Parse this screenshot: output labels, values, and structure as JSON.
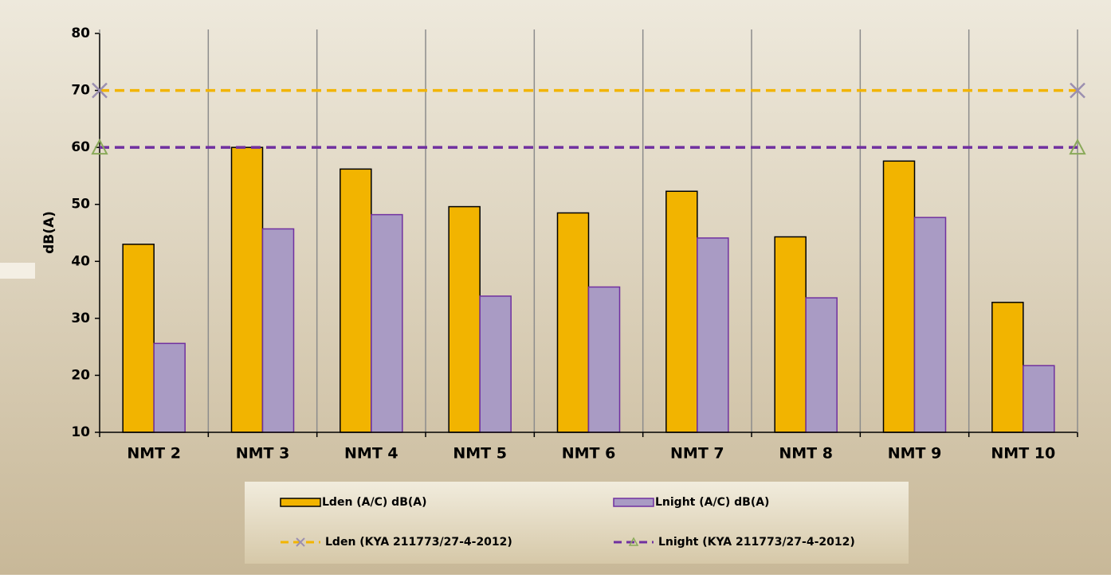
{
  "chart_data": {
    "type": "bar",
    "ylabel": "dB(A)",
    "categories": [
      "NMT 2",
      "NMT 3",
      "NMT 4",
      "NMT 5",
      "NMT 6",
      "NMT 7",
      "NMT 8",
      "NMT 9",
      "NMT 10"
    ],
    "series": [
      {
        "name": "Lden (A/C) dB(A)",
        "color": "#f2b400",
        "values": [
          43,
          60,
          56.2,
          49.6,
          48.5,
          52.3,
          44.3,
          57.6,
          32.8
        ]
      },
      {
        "name": "Lnight (A/C) dB(A)",
        "color": "#a99bc4",
        "values": [
          25.6,
          45.7,
          48.2,
          33.9,
          35.5,
          44.1,
          33.6,
          47.7,
          21.7
        ]
      }
    ],
    "reference_lines": [
      {
        "name": "Lden (KYA 211773/27-4-2012)",
        "color": "#f2b400",
        "marker": "x",
        "marker_color": "#9b8fb0",
        "values": [
          70,
          70
        ]
      },
      {
        "name": "Lnight (KYA 211773/27-4-2012)",
        "color": "#7030a0",
        "marker": "triangle",
        "marker_color": "#8aaa5a",
        "values": [
          60,
          60
        ]
      }
    ],
    "ylim": [
      10,
      80
    ],
    "yticks": [
      10,
      20,
      30,
      40,
      50,
      60,
      70,
      80
    ],
    "grid": "vertical"
  }
}
